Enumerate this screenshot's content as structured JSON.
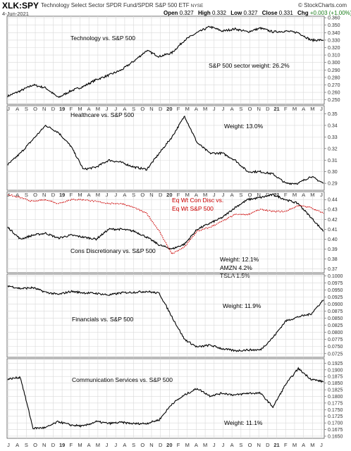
{
  "header": {
    "symbol": "XLK:SPY",
    "name": "Technology Select Sector SPDR Fund/SPDR S&P 500 ETF",
    "exchange": "NYSE",
    "source": "© StockCharts.com",
    "date": "4-Jun-2021",
    "open_label": "Open",
    "open": "0.327",
    "high_label": "High",
    "high": "0.332",
    "low_label": "Low",
    "low": "0.327",
    "close_label": "Close",
    "close": "0.331",
    "chg_label": "Chg",
    "chg": "+0.003 (+1.00%)"
  },
  "colors": {
    "line": "#000000",
    "eqwt": "#cc0000",
    "grid": "#d9d9d9",
    "frame": "#555555",
    "axis_text": "#333333"
  },
  "chart_data": [
    {
      "type": "line",
      "series": [
        {
          "values": [
            0.255,
            0.262,
            0.27,
            0.266,
            0.253,
            0.262,
            0.268,
            0.277,
            0.283,
            0.29,
            0.302,
            0.316,
            0.308,
            0.313,
            0.33,
            0.34,
            0.348,
            0.342,
            0.345,
            0.341,
            0.346,
            0.341,
            0.342,
            0.34,
            0.33,
            0.33
          ]
        }
      ],
      "annotations": [
        "Technology vs. S&P 500",
        "S&P 500 sector weight: 26.2%"
      ],
      "yticks": [
        "0.360",
        "0.350",
        "0.340",
        "0.330",
        "0.320",
        "0.310",
        "0.300",
        "0.290",
        "0.280",
        "0.270",
        "0.260",
        "0.250"
      ],
      "ylim": [
        0.244,
        0.362
      ]
    },
    {
      "type": "line",
      "series": [
        {
          "values": [
            0.306,
            0.316,
            0.328,
            0.34,
            0.334,
            0.322,
            0.302,
            0.304,
            0.31,
            0.308,
            0.304,
            0.302,
            0.316,
            0.33,
            0.348,
            0.325,
            0.316,
            0.316,
            0.31,
            0.3,
            0.3,
            0.298,
            0.29,
            0.29,
            0.296,
            0.29
          ]
        }
      ],
      "annotations": [
        "Healthcare vs. S&P 500",
        "Weight: 13.0%"
      ],
      "yticks": [
        "0.35",
        "0.34",
        "0.33",
        "0.32",
        "0.31",
        "0.30",
        "0.29"
      ],
      "ylim": [
        0.284,
        0.357
      ]
    },
    {
      "type": "line",
      "series": [
        {
          "name": "Cons Discretionary vs. S&P 500",
          "values": [
            0.412,
            0.4,
            0.404,
            0.406,
            0.401,
            0.404,
            0.402,
            0.4,
            0.41,
            0.41,
            0.408,
            0.402,
            0.394,
            0.39,
            0.395,
            0.41,
            0.416,
            0.422,
            0.432,
            0.44,
            0.442,
            0.445,
            0.44,
            0.436,
            0.422,
            0.408
          ]
        },
        {
          "name": "Eq Wt Con Disc vs. Eq Wt S&P 500",
          "values": [
            0.445,
            0.442,
            0.438,
            0.44,
            0.436,
            0.44,
            0.44,
            0.438,
            0.436,
            0.436,
            0.432,
            0.426,
            0.408,
            0.385,
            0.392,
            0.408,
            0.412,
            0.418,
            0.425,
            0.425,
            0.43,
            0.428,
            0.428,
            0.434,
            0.432,
            0.426
          ]
        }
      ],
      "annotations": [
        "Weight: 12.1%",
        "AMZN 4.2%",
        "TSLA 1.5%"
      ],
      "yticks": [
        "0.44",
        "0.43",
        "0.42",
        "0.41",
        "0.40",
        "0.39",
        "0.38",
        "0.37"
      ],
      "ylim": [
        0.366,
        0.448
      ]
    },
    {
      "type": "line",
      "series": [
        {
          "values": [
            0.0965,
            0.0955,
            0.0958,
            0.0942,
            0.0934,
            0.0945,
            0.094,
            0.0938,
            0.0932,
            0.094,
            0.0942,
            0.0945,
            0.0938,
            0.0855,
            0.0775,
            0.0748,
            0.0755,
            0.0742,
            0.0735,
            0.0738,
            0.0738,
            0.0782,
            0.084,
            0.0855,
            0.0865,
            0.0915
          ]
        }
      ],
      "annotations": [
        "Financials vs. S&P 500",
        "Weight: 11.9%"
      ],
      "yticks": [
        "0.1000",
        "0.0975",
        "0.0950",
        "0.0925",
        "0.0900",
        "0.0875",
        "0.0850",
        "0.0825",
        "0.0800",
        "0.0775",
        "0.0750",
        "0.0725"
      ],
      "ylim": [
        0.0712,
        0.1006
      ]
    },
    {
      "type": "line",
      "series": [
        {
          "values": [
            0.1865,
            0.1872,
            0.168,
            0.1682,
            0.1705,
            0.1692,
            0.1688,
            0.1705,
            0.1698,
            0.1702,
            0.1697,
            0.1698,
            0.1712,
            0.1772,
            0.1805,
            0.183,
            0.1802,
            0.1812,
            0.1805,
            0.1812,
            0.1812,
            0.176,
            0.1845,
            0.1905,
            0.1865,
            0.1855
          ]
        }
      ],
      "annotations": [
        "Communication Services vs. S&P 500",
        "Weight: 11.1%"
      ],
      "yticks": [
        "0.1925",
        "0.1900",
        "0.1875",
        "0.1850",
        "0.1825",
        "0.1800",
        "0.1775",
        "0.1750",
        "0.1725",
        "0.1700",
        "0.1675",
        "0.1650"
      ],
      "ylim": [
        0.1642,
        0.1942
      ]
    }
  ],
  "x_axis": {
    "labels": [
      "J",
      "A",
      "S",
      "O",
      "N",
      "D",
      "19",
      "F",
      "M",
      "A",
      "M",
      "J",
      "J",
      "A",
      "S",
      "O",
      "N",
      "D",
      "20",
      "F",
      "M",
      "A",
      "M",
      "J",
      "J",
      "A",
      "S",
      "O",
      "N",
      "D",
      "21",
      "F",
      "M",
      "A",
      "M",
      "J"
    ],
    "bold": [
      "19",
      "20",
      "21"
    ]
  }
}
